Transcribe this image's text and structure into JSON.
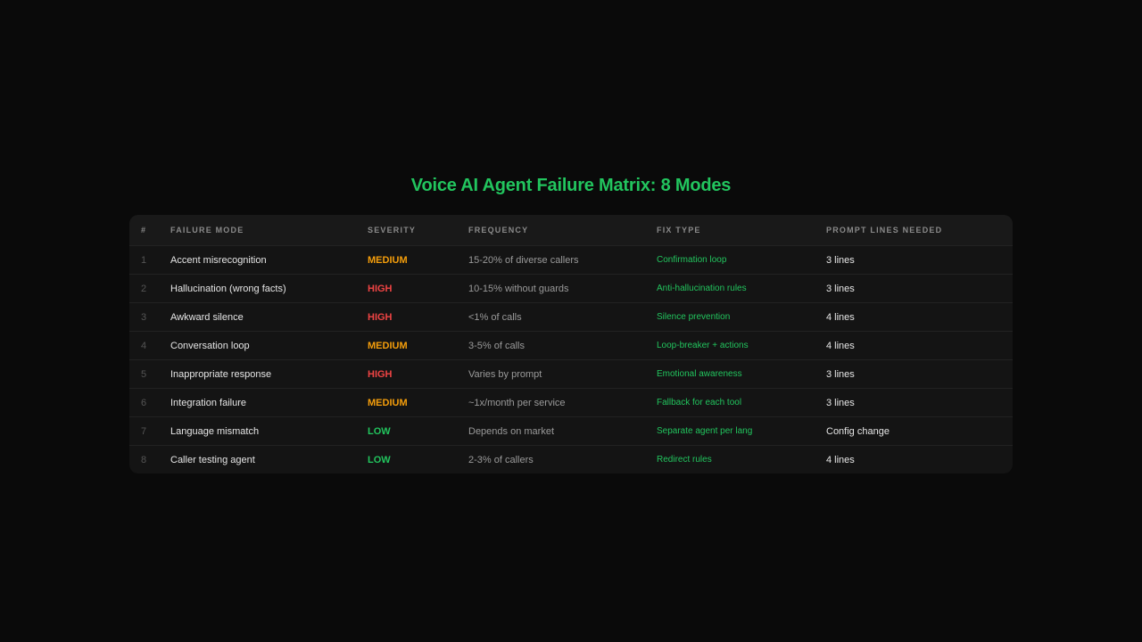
{
  "title": "Voice AI Agent Failure Matrix: 8 Modes",
  "colors": {
    "accent": "#22c55e",
    "HIGH": "#ef4444",
    "MEDIUM": "#f59e0b",
    "LOW": "#22c55e"
  },
  "headers": [
    "#",
    "FAILURE MODE",
    "SEVERITY",
    "FREQUENCY",
    "FIX TYPE",
    "PROMPT LINES NEEDED"
  ],
  "rows": [
    {
      "num": "1",
      "mode": "Accent misrecognition",
      "severity": "MEDIUM",
      "frequency": "15-20% of diverse callers",
      "fix": "Confirmation loop",
      "lines": "3 lines"
    },
    {
      "num": "2",
      "mode": "Hallucination (wrong facts)",
      "severity": "HIGH",
      "frequency": "10-15% without guards",
      "fix": "Anti-hallucination rules",
      "lines": "3 lines"
    },
    {
      "num": "3",
      "mode": "Awkward silence",
      "severity": "HIGH",
      "frequency": "<1% of calls",
      "fix": "Silence prevention",
      "lines": "4 lines"
    },
    {
      "num": "4",
      "mode": "Conversation loop",
      "severity": "MEDIUM",
      "frequency": "3-5% of calls",
      "fix": "Loop-breaker + actions",
      "lines": "4 lines"
    },
    {
      "num": "5",
      "mode": "Inappropriate response",
      "severity": "HIGH",
      "frequency": "Varies by prompt",
      "fix": "Emotional awareness",
      "lines": "3 lines"
    },
    {
      "num": "6",
      "mode": "Integration failure",
      "severity": "MEDIUM",
      "frequency": "~1x/month per service",
      "fix": "Fallback for each tool",
      "lines": "3 lines"
    },
    {
      "num": "7",
      "mode": "Language mismatch",
      "severity": "LOW",
      "frequency": "Depends on market",
      "fix": "Separate agent per lang",
      "lines": "Config change"
    },
    {
      "num": "8",
      "mode": "Caller testing agent",
      "severity": "LOW",
      "frequency": "2-3% of callers",
      "fix": "Redirect rules",
      "lines": "4 lines"
    }
  ]
}
